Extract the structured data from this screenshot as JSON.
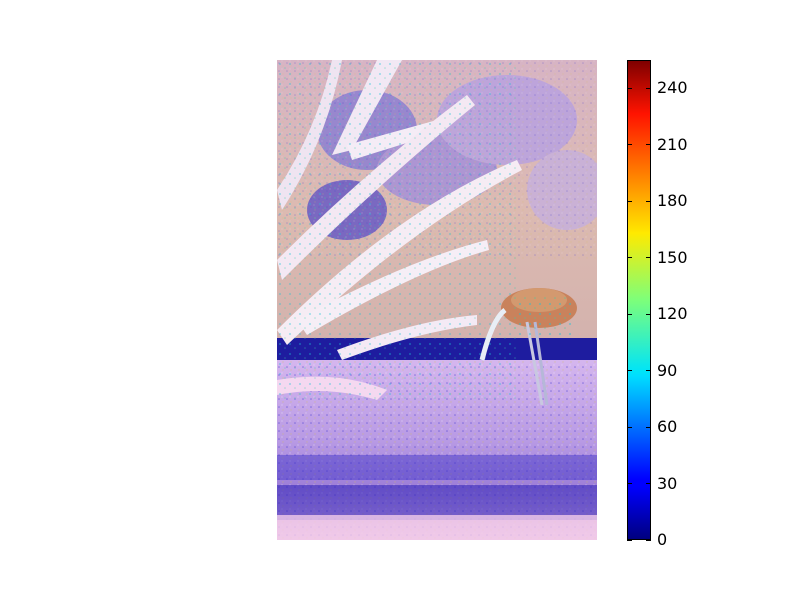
{
  "figure": {
    "image_description_colors": {
      "sky": "#d8b6b2",
      "palm_fronds": "#f4e6f2",
      "shadow_band": "#1d1a9e",
      "grass": "#c8a4e8"
    }
  },
  "colorbar": {
    "colormap": "jet",
    "min": 0,
    "max": 255,
    "tick_labels": [
      "0",
      "30",
      "60",
      "90",
      "120",
      "150",
      "180",
      "210",
      "240"
    ],
    "tick_values": [
      0,
      30,
      60,
      90,
      120,
      150,
      180,
      210,
      240
    ]
  }
}
